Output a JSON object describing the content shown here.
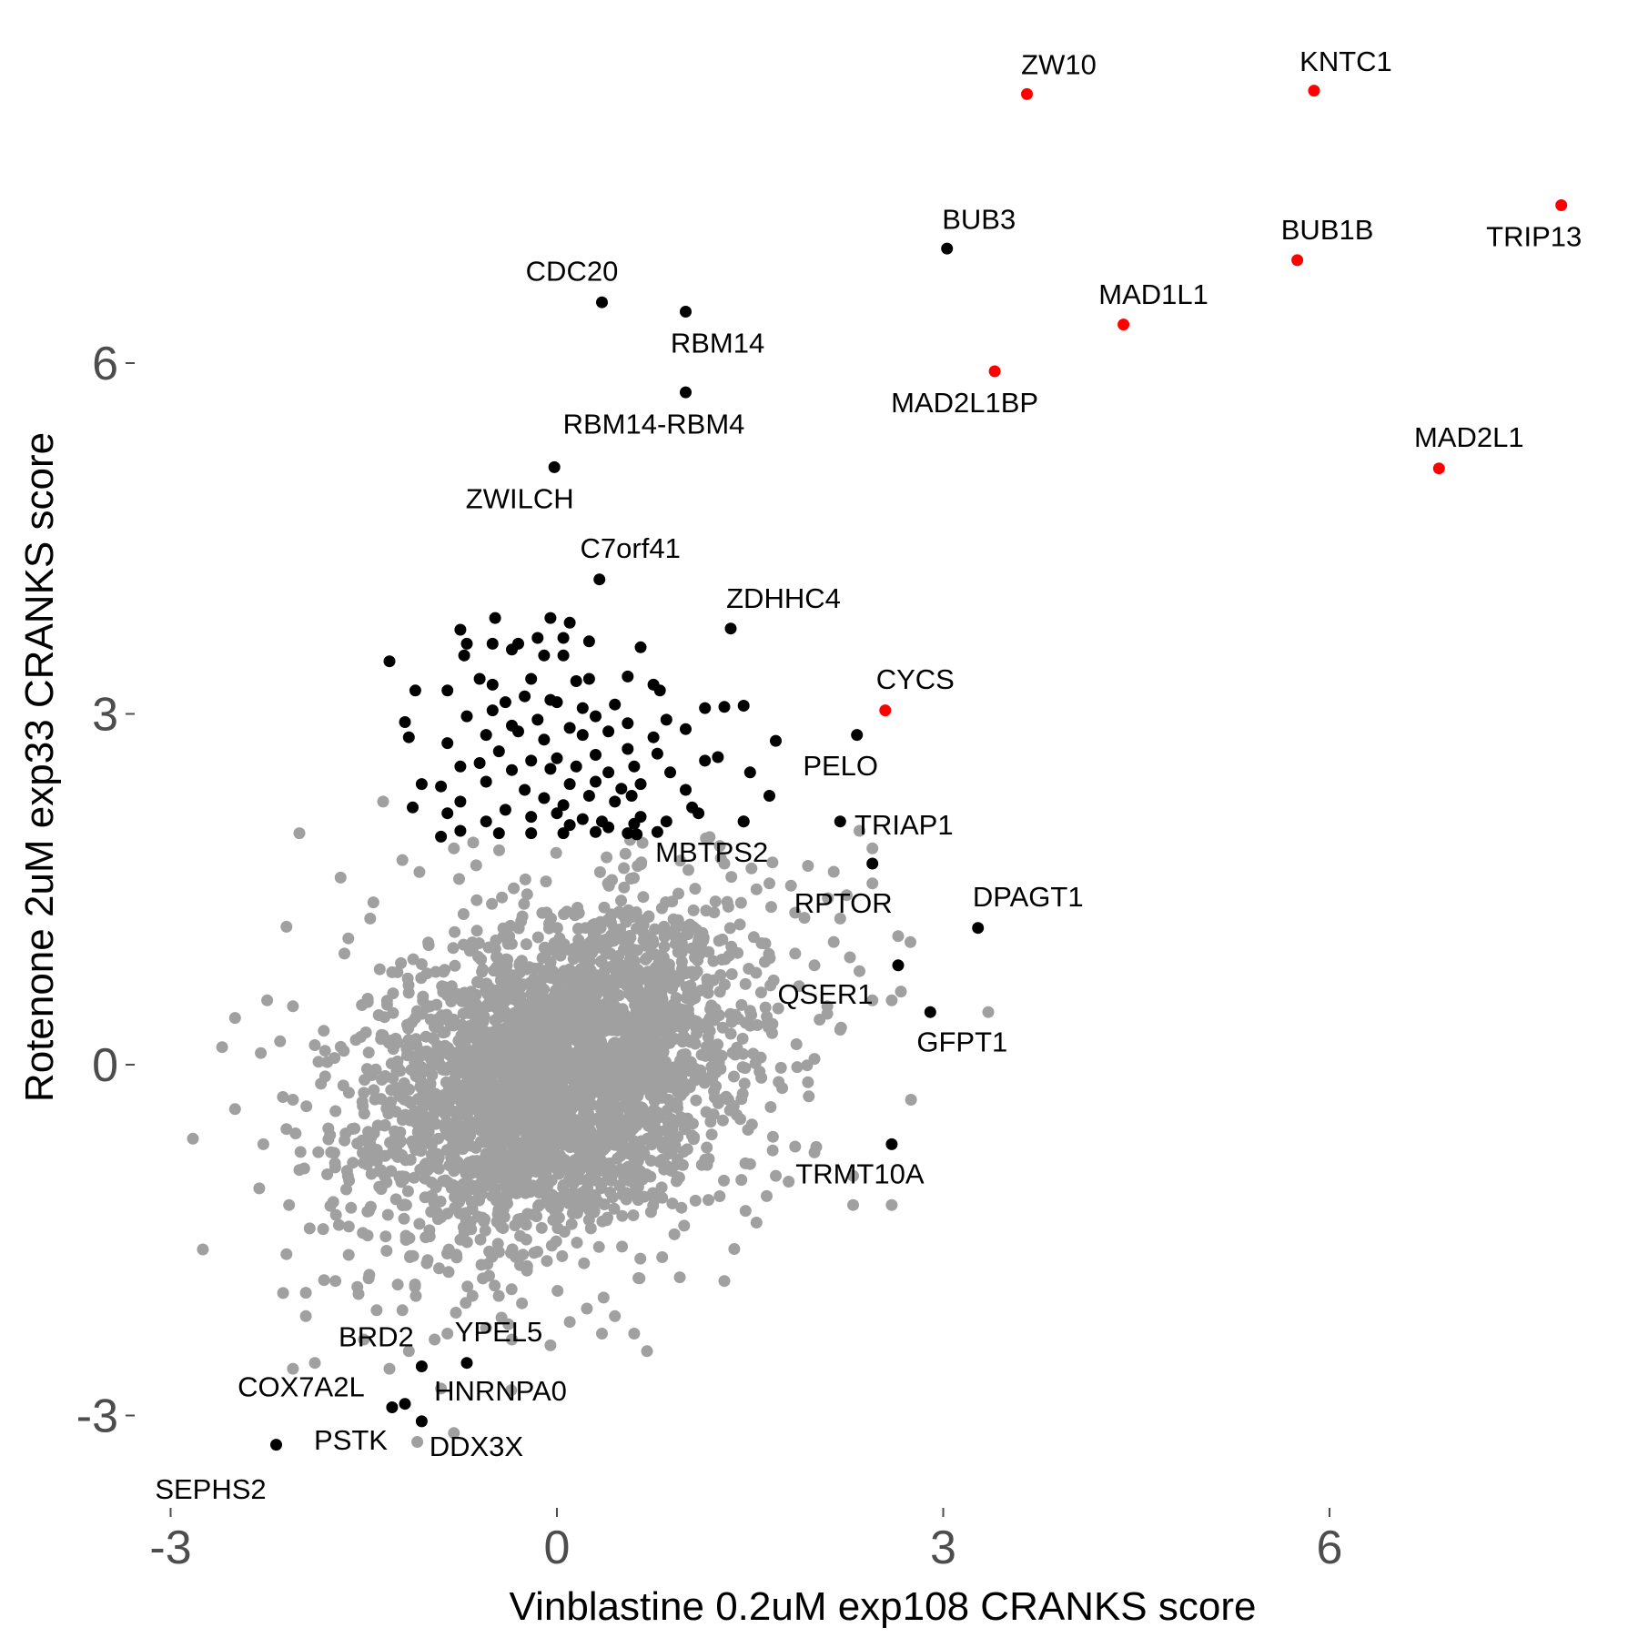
{
  "chart_data": {
    "type": "scatter",
    "xlabel": "Vinblastine 0.2uM exp108 CRANKS score",
    "ylabel": "Rotenone 2uM exp33 CRANKS score",
    "xlim": [
      -3.3,
      8.3
    ],
    "ylim": [
      -3.8,
      8.6
    ],
    "x_ticks": [
      -3,
      0,
      3,
      6
    ],
    "y_ticks": [
      -3,
      0,
      3,
      6
    ],
    "colors": {
      "background_points": "#a0a0a0",
      "hit_points": "#000000",
      "highlight_points": "#ff0000",
      "axis_text": "#4d4d4d"
    },
    "grid": false,
    "legend": "none",
    "background_cloud": {
      "note_on_render": "dense grey cloud of non-significant genes",
      "center": [
        0,
        -0.1
      ],
      "spread": [
        0.7,
        0.7
      ],
      "correlation": 0.3
    },
    "points": [
      {
        "label": "ZW10",
        "x": 3.65,
        "y": 8.3,
        "color": "red"
      },
      {
        "label": "KNTC1",
        "x": 5.88,
        "y": 8.33,
        "color": "red"
      },
      {
        "label": "TRIP13",
        "x": 7.8,
        "y": 7.35,
        "color": "red"
      },
      {
        "label": "BUB1B",
        "x": 5.75,
        "y": 6.88,
        "color": "red"
      },
      {
        "label": "MAD1L1",
        "x": 4.4,
        "y": 6.33,
        "color": "red"
      },
      {
        "label": "MAD2L1BP",
        "x": 3.4,
        "y": 5.93,
        "color": "red"
      },
      {
        "label": "MAD2L1",
        "x": 6.85,
        "y": 5.1,
        "color": "red"
      },
      {
        "label": "CYCS",
        "x": 2.55,
        "y": 3.03,
        "color": "red"
      },
      {
        "label": "BUB3",
        "x": 3.03,
        "y": 6.98,
        "color": "black"
      },
      {
        "label": "CDC20",
        "x": 0.35,
        "y": 6.52,
        "color": "black"
      },
      {
        "label": "RBM14",
        "x": 1.0,
        "y": 6.44,
        "color": "black"
      },
      {
        "label": "RBM14-RBM4",
        "x": 1.0,
        "y": 5.75,
        "color": "black"
      },
      {
        "label": "ZWILCH",
        "x": -0.02,
        "y": 5.11,
        "color": "black"
      },
      {
        "label": "C7orf41",
        "x": 0.33,
        "y": 4.15,
        "color": "black"
      },
      {
        "label": "ZDHHC4",
        "x": 1.35,
        "y": 3.73,
        "color": "black"
      },
      {
        "label": "PELO",
        "x": 2.33,
        "y": 2.82,
        "color": "black"
      },
      {
        "label": "TRIAP1",
        "x": 2.2,
        "y": 2.08,
        "color": "black"
      },
      {
        "label": "MBTPS2",
        "x": 1.45,
        "y": 2.08,
        "color": "black"
      },
      {
        "label": "RPTOR",
        "x": 2.45,
        "y": 1.72,
        "color": "black"
      },
      {
        "label": "DPAGT1",
        "x": 3.27,
        "y": 1.17,
        "color": "black"
      },
      {
        "label": "QSER1",
        "x": 2.65,
        "y": 0.85,
        "color": "black"
      },
      {
        "label": "GFPT1",
        "x": 2.9,
        "y": 0.45,
        "color": "black"
      },
      {
        "label": "TRMT10A",
        "x": 2.6,
        "y": -0.68,
        "color": "black"
      },
      {
        "label": "BRD2",
        "x": -1.05,
        "y": -2.58,
        "color": "black"
      },
      {
        "label": "YPEL5",
        "x": -0.7,
        "y": -2.55,
        "color": "black"
      },
      {
        "label": "COX7A2L",
        "x": -1.28,
        "y": -2.93,
        "color": "black"
      },
      {
        "label": "HNRNPA0",
        "x": -1.18,
        "y": -2.9,
        "color": "black"
      },
      {
        "label": "DDX3X",
        "x": -1.05,
        "y": -3.05,
        "color": "black"
      },
      {
        "label": "PSTK",
        "x": -2.18,
        "y": -3.25,
        "color": "black"
      },
      {
        "label": "SEPHS2",
        "x": -2.18,
        "y": -3.25,
        "color": "black"
      }
    ],
    "black_cluster": [
      [
        -1.3,
        3.45
      ],
      [
        -1.1,
        3.2
      ],
      [
        -1.18,
        2.93
      ],
      [
        -1.15,
        2.8
      ],
      [
        -1.05,
        2.4
      ],
      [
        -1.12,
        2.2
      ],
      [
        -0.75,
        3.72
      ],
      [
        -0.48,
        3.82
      ],
      [
        -0.7,
        3.6
      ],
      [
        -0.5,
        3.6
      ],
      [
        -0.35,
        3.55
      ],
      [
        -0.3,
        3.6
      ],
      [
        -0.15,
        3.65
      ],
      [
        -0.05,
        3.82
      ],
      [
        0.1,
        3.78
      ],
      [
        0.05,
        3.65
      ],
      [
        0.25,
        3.62
      ],
      [
        0.65,
        3.57
      ],
      [
        -0.72,
        3.5
      ],
      [
        -0.1,
        3.5
      ],
      [
        0.05,
        3.5
      ],
      [
        -0.6,
        3.3
      ],
      [
        -0.5,
        3.25
      ],
      [
        -0.2,
        3.3
      ],
      [
        0.15,
        3.28
      ],
      [
        0.25,
        3.3
      ],
      [
        0.55,
        3.32
      ],
      [
        0.75,
        3.25
      ],
      [
        0.8,
        3.2
      ],
      [
        -0.85,
        3.2
      ],
      [
        -0.4,
        3.1
      ],
      [
        -0.25,
        3.15
      ],
      [
        -0.05,
        3.12
      ],
      [
        0.0,
        3.1
      ],
      [
        0.2,
        3.05
      ],
      [
        0.45,
        3.08
      ],
      [
        1.15,
        3.05
      ],
      [
        1.3,
        3.06
      ],
      [
        1.45,
        3.07
      ],
      [
        -0.7,
        2.98
      ],
      [
        -0.5,
        3.03
      ],
      [
        -0.35,
        2.9
      ],
      [
        -0.15,
        2.95
      ],
      [
        0.1,
        2.88
      ],
      [
        0.3,
        2.98
      ],
      [
        0.55,
        2.92
      ],
      [
        0.85,
        2.95
      ],
      [
        -0.55,
        2.82
      ],
      [
        -0.3,
        2.85
      ],
      [
        -0.1,
        2.78
      ],
      [
        0.2,
        2.82
      ],
      [
        0.4,
        2.85
      ],
      [
        0.75,
        2.8
      ],
      [
        1.0,
        2.87
      ],
      [
        1.7,
        2.77
      ],
      [
        -0.85,
        2.75
      ],
      [
        -0.45,
        2.68
      ],
      [
        -0.2,
        2.6
      ],
      [
        0.0,
        2.62
      ],
      [
        0.3,
        2.65
      ],
      [
        0.55,
        2.7
      ],
      [
        0.78,
        2.66
      ],
      [
        1.15,
        2.6
      ],
      [
        1.25,
        2.63
      ],
      [
        -0.75,
        2.55
      ],
      [
        -0.6,
        2.58
      ],
      [
        -0.35,
        2.52
      ],
      [
        -0.05,
        2.53
      ],
      [
        0.15,
        2.55
      ],
      [
        0.4,
        2.5
      ],
      [
        0.6,
        2.55
      ],
      [
        0.88,
        2.5
      ],
      [
        1.5,
        2.5
      ],
      [
        -0.9,
        2.38
      ],
      [
        -0.55,
        2.42
      ],
      [
        -0.25,
        2.35
      ],
      [
        0.1,
        2.4
      ],
      [
        0.3,
        2.42
      ],
      [
        0.5,
        2.36
      ],
      [
        0.65,
        2.4
      ],
      [
        1.0,
        2.35
      ],
      [
        -0.75,
        2.25
      ],
      [
        -0.1,
        2.28
      ],
      [
        0.05,
        2.22
      ],
      [
        0.25,
        2.3
      ],
      [
        0.45,
        2.25
      ],
      [
        0.58,
        2.3
      ],
      [
        1.05,
        2.2
      ],
      [
        1.65,
        2.3
      ],
      [
        -0.85,
        2.15
      ],
      [
        -0.4,
        2.18
      ],
      [
        -0.2,
        2.12
      ],
      [
        0.0,
        2.15
      ],
      [
        0.2,
        2.1
      ],
      [
        0.35,
        2.08
      ],
      [
        0.65,
        2.12
      ],
      [
        1.1,
        2.15
      ],
      [
        1.45,
        2.08
      ],
      [
        -0.55,
        2.08
      ],
      [
        0.1,
        2.05
      ],
      [
        0.4,
        2.03
      ],
      [
        0.6,
        2.06
      ],
      [
        0.85,
        2.08
      ],
      [
        -0.75,
        2.0
      ],
      [
        -0.45,
        1.98
      ],
      [
        -0.2,
        1.98
      ],
      [
        0.05,
        1.98
      ],
      [
        0.3,
        1.99
      ],
      [
        0.55,
        1.98
      ],
      [
        0.78,
        1.99
      ],
      [
        -0.9,
        1.95
      ],
      [
        0.62,
        1.97
      ]
    ],
    "grey_outliers": [
      [
        -2.0,
        1.98
      ],
      [
        -1.35,
        2.25
      ],
      [
        -1.2,
        1.75
      ],
      [
        -0.8,
        1.85
      ],
      [
        -0.65,
        1.9
      ],
      [
        -1.68,
        1.6
      ],
      [
        -2.1,
        1.18
      ],
      [
        -1.45,
        1.25
      ],
      [
        -1.62,
        1.08
      ],
      [
        -1.65,
        0.95
      ],
      [
        -2.5,
        0.4
      ],
      [
        -2.25,
        0.55
      ],
      [
        -2.6,
        0.15
      ],
      [
        -2.3,
        0.1
      ],
      [
        -2.15,
        0.2
      ],
      [
        -2.05,
        0.5
      ],
      [
        -2.05,
        -0.3
      ],
      [
        -2.5,
        -0.38
      ],
      [
        -2.1,
        -0.55
      ],
      [
        -2.28,
        -0.68
      ],
      [
        -2.0,
        -0.9
      ],
      [
        -2.08,
        -1.2
      ],
      [
        -1.92,
        -1.4
      ],
      [
        -2.75,
        -1.58
      ],
      [
        -2.1,
        -1.62
      ],
      [
        -1.95,
        -1.95
      ],
      [
        -1.72,
        -1.85
      ],
      [
        -1.55,
        -1.9
      ],
      [
        -1.4,
        -2.1
      ],
      [
        -1.5,
        -2.35
      ],
      [
        -1.2,
        -2.1
      ],
      [
        -1.95,
        -2.15
      ],
      [
        -1.88,
        -2.55
      ],
      [
        -2.05,
        -2.6
      ],
      [
        -1.15,
        -2.45
      ],
      [
        -0.85,
        -2.3
      ],
      [
        -0.55,
        -2.25
      ],
      [
        -0.35,
        -2.35
      ],
      [
        -0.05,
        -2.4
      ],
      [
        0.35,
        -2.3
      ],
      [
        0.7,
        -2.45
      ],
      [
        0.6,
        -2.3
      ],
      [
        -0.8,
        -3.15
      ],
      [
        -0.9,
        -2.77
      ],
      [
        0.1,
        -2.2
      ],
      [
        0.45,
        -2.15
      ],
      [
        1.3,
        -1.85
      ],
      [
        -0.95,
        -2.35
      ],
      [
        -1.3,
        -2.6
      ],
      [
        1.55,
        -1.35
      ],
      [
        2.3,
        -1.2
      ],
      [
        2.6,
        -1.2
      ],
      [
        1.8,
        -1.0
      ],
      [
        2.3,
        -0.95
      ],
      [
        1.7,
        -0.95
      ],
      [
        1.5,
        -0.85
      ],
      [
        1.85,
        -0.7
      ],
      [
        2.0,
        -0.75
      ],
      [
        2.75,
        -0.3
      ],
      [
        1.95,
        -0.15
      ],
      [
        1.75,
        -0.2
      ],
      [
        2.0,
        0.05
      ],
      [
        2.2,
        0.3
      ],
      [
        2.1,
        0.5
      ],
      [
        2.45,
        0.55
      ],
      [
        2.6,
        0.55
      ],
      [
        3.35,
        0.45
      ],
      [
        2.35,
        0.8
      ],
      [
        2.65,
        1.1
      ],
      [
        2.0,
        0.85
      ],
      [
        1.85,
        0.95
      ],
      [
        2.15,
        1.05
      ],
      [
        2.2,
        1.25
      ],
      [
        2.25,
        1.45
      ],
      [
        2.45,
        1.55
      ],
      [
        2.45,
        1.85
      ],
      [
        2.35,
        2.0
      ],
      [
        1.95,
        1.7
      ],
      [
        1.65,
        1.55
      ],
      [
        1.55,
        1.5
      ],
      [
        1.3,
        1.72
      ],
      [
        2.15,
        1.65
      ],
      [
        1.85,
        1.3
      ]
    ]
  }
}
